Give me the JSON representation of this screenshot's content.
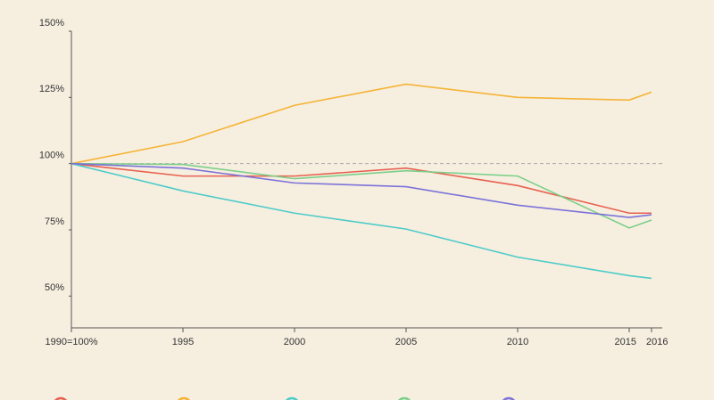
{
  "chart_data": {
    "type": "line",
    "x": [
      1990,
      1995,
      2000,
      2005,
      2010,
      2015,
      2016
    ],
    "series": [
      {
        "color": "#e8604f",
        "values": [
          100,
          95.3,
          95.3,
          98.3,
          91.7,
          81.3,
          81.3
        ]
      },
      {
        "color": "#f5b335",
        "values": [
          100,
          108.3,
          122,
          130,
          125,
          124,
          127
        ]
      },
      {
        "color": "#4ecbc8",
        "values": [
          100,
          89.7,
          81.3,
          75.3,
          64.7,
          57.7,
          56.7
        ]
      },
      {
        "color": "#7ccf8a",
        "values": [
          100,
          99.7,
          94.3,
          97.3,
          95.3,
          75.7,
          78.7
        ]
      },
      {
        "color": "#7c72d8",
        "values": [
          100,
          98.3,
          92.7,
          91.3,
          84.3,
          79.7,
          80.7
        ]
      }
    ],
    "xlim": [
      1990,
      2016
    ],
    "xticks": [
      {
        "value": 1990,
        "label": "1990=100%"
      },
      1995,
      2000,
      2005,
      2010,
      2015,
      2016
    ],
    "ylim": [
      38,
      150
    ],
    "yticks": [
      {
        "value": 50,
        "label": "50%"
      },
      {
        "value": 75,
        "label": "75%"
      },
      {
        "value": 100,
        "label": "100%"
      },
      {
        "value": 125,
        "label": "125%"
      },
      {
        "value": 150,
        "label": "150%"
      }
    ],
    "reference_line": 100
  }
}
